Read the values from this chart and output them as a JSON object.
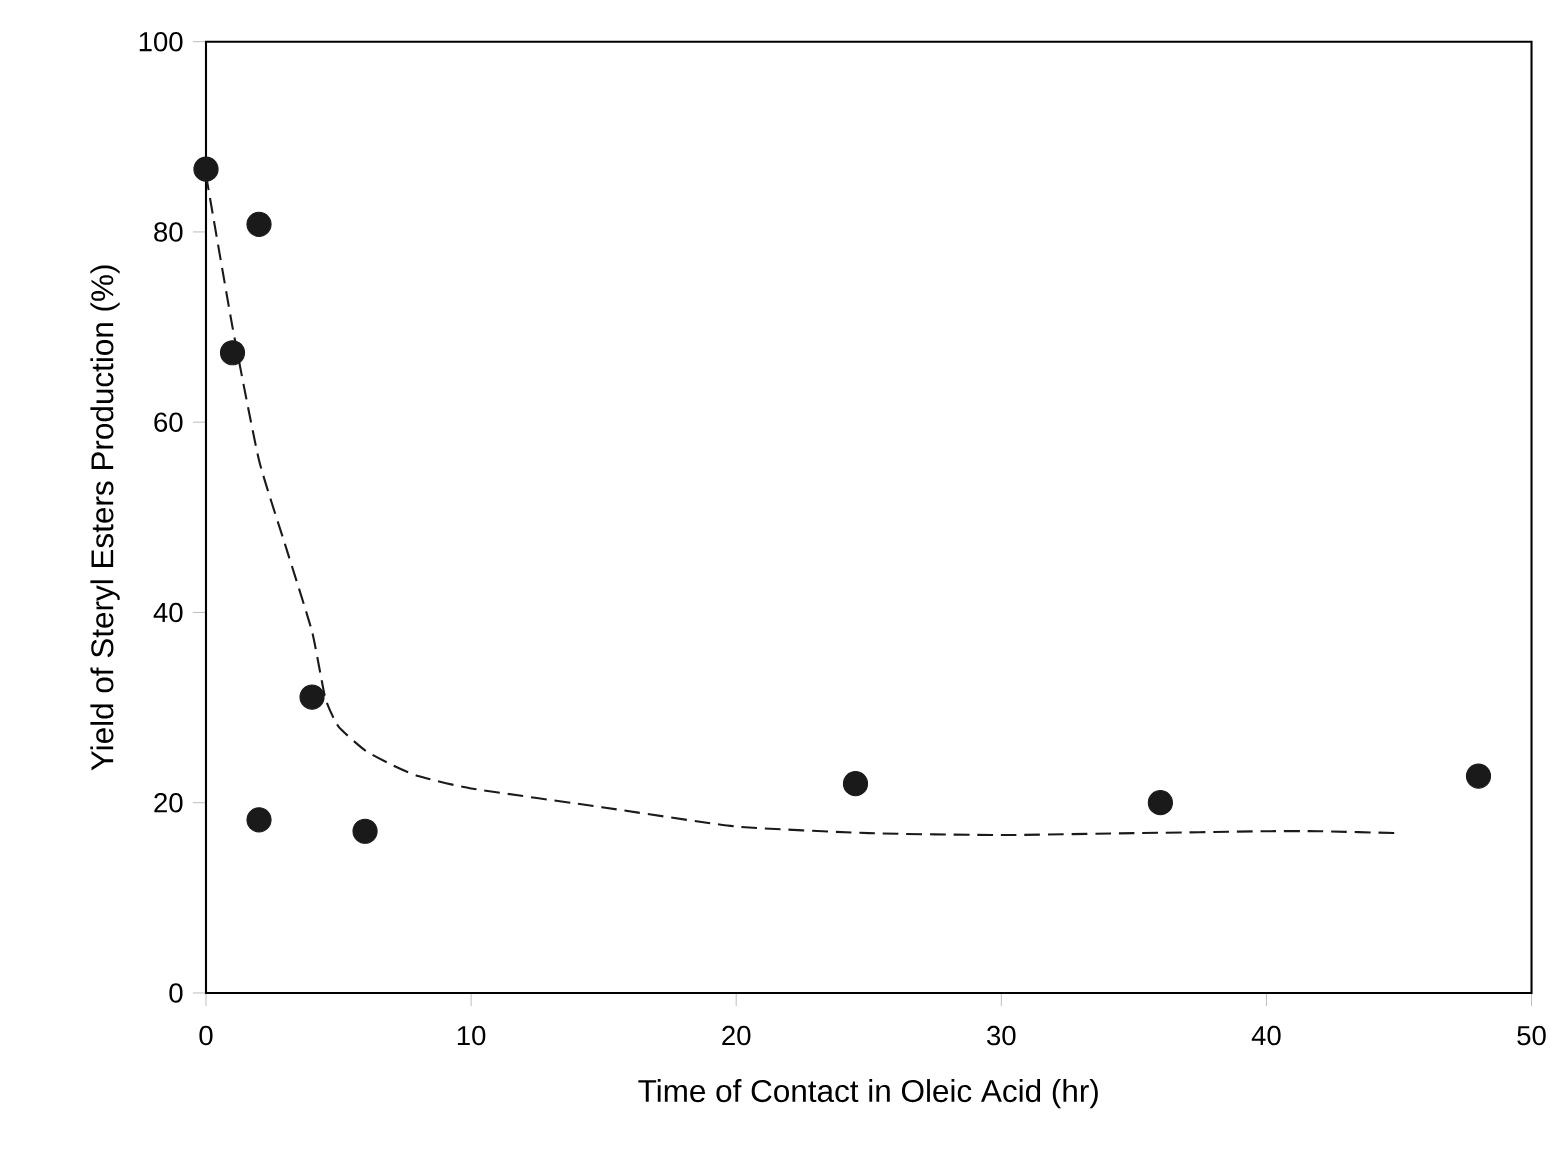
{
  "chart_data": {
    "type": "scatter",
    "xlabel": "Time of Contact in Oleic Acid (hr)",
    "ylabel": "Yield of Steryl Esters Production  (%)",
    "xlim": [
      0,
      50
    ],
    "ylim": [
      0,
      100
    ],
    "xticks": [
      0,
      10,
      20,
      30,
      40,
      50
    ],
    "yticks": [
      0,
      20,
      40,
      60,
      80,
      100
    ],
    "grid": false,
    "series": [
      {
        "type": "scatter",
        "color": "#1a1a1a",
        "marker": "circle",
        "x": [
          0,
          1,
          2,
          2,
          4,
          6,
          24.5,
          36,
          48
        ],
        "values": [
          86.6,
          67.3,
          80.8,
          18.2,
          31.1,
          17,
          22,
          20,
          22.8
        ]
      },
      {
        "type": "line",
        "color": "#1a1a1a",
        "line_style": "dashed",
        "marker": "none",
        "x": [
          0,
          1,
          2,
          3,
          4,
          4.5,
          5,
          6,
          7,
          8,
          10,
          15,
          20,
          25,
          30,
          35,
          40,
          42,
          45
        ],
        "values": [
          86,
          70,
          56,
          47,
          38,
          31,
          28,
          25.5,
          24,
          22.8,
          21.5,
          19.5,
          17.5,
          16.8,
          16.6,
          16.8,
          17,
          17,
          16.8
        ]
      }
    ]
  }
}
